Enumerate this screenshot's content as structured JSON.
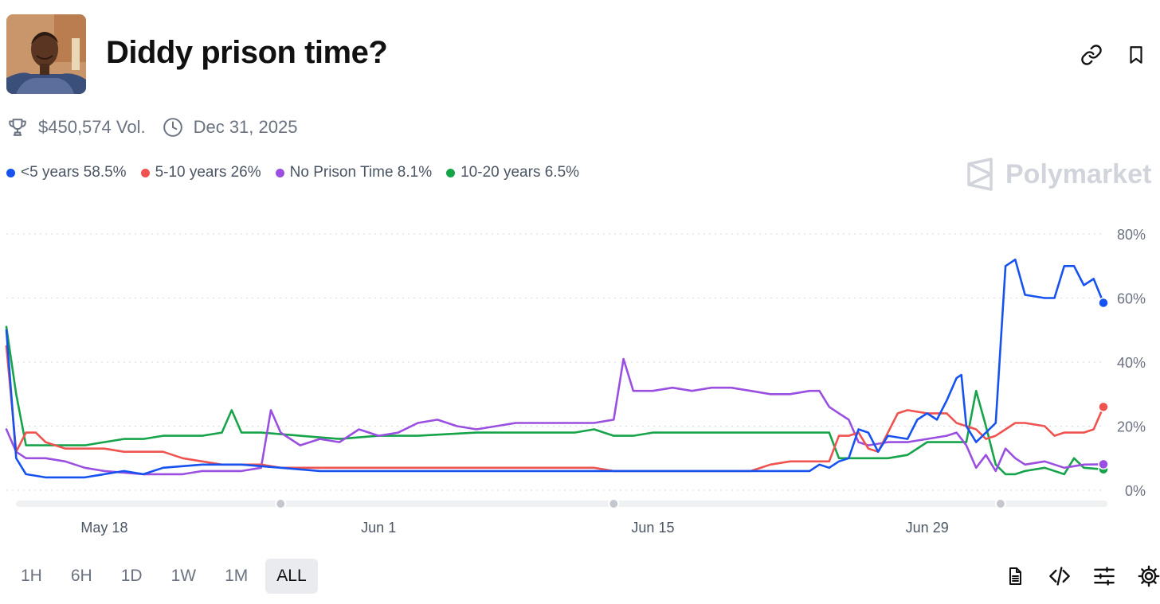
{
  "header": {
    "title": "Diddy prison time?",
    "link_icon": "link-icon",
    "bookmark_icon": "bookmark-icon"
  },
  "meta": {
    "volume": "$450,574 Vol.",
    "end_date": "Dec 31, 2025"
  },
  "brand": "Polymarket",
  "legend": [
    {
      "label": "<5 years 58.5%",
      "color": "#1652f0"
    },
    {
      "label": "5-10 years 26%",
      "color": "#ef5350"
    },
    {
      "label": "No Prison Time 8.1%",
      "color": "#9a4fe0"
    },
    {
      "label": "10-20 years 6.5%",
      "color": "#16a34a"
    }
  ],
  "time_ranges": [
    "1H",
    "6H",
    "1D",
    "1W",
    "1M",
    "ALL"
  ],
  "active_range": "ALL",
  "toolbar_icons": [
    "document-icon",
    "embed-code-icon",
    "sliders-icon",
    "gear-icon"
  ],
  "chart_data": {
    "type": "line",
    "x_axis": {
      "type": "date",
      "ticks": [
        "May 18",
        "Jun 1",
        "Jun 15",
        "Jun 29"
      ],
      "tick_dates": [
        "2025-05-18",
        "2025-06-01",
        "2025-06-15",
        "2025-06-29"
      ],
      "range": [
        "2025-05-13",
        "2025-07-08"
      ]
    },
    "y_axis": {
      "ticks": [
        "0%",
        "20%",
        "40%",
        "60%",
        "80%"
      ],
      "tick_values": [
        0,
        20,
        40,
        60,
        80
      ],
      "ylim": [
        0,
        80
      ],
      "side": "right"
    },
    "grid": "horizontal-dotted",
    "series": [
      {
        "name": "<5 years",
        "color": "#1652f0",
        "points": [
          [
            "2025-05-13",
            50
          ],
          [
            "2025-05-13 12:00",
            10
          ],
          [
            "2025-05-14",
            5
          ],
          [
            "2025-05-15",
            4
          ],
          [
            "2025-05-17",
            4
          ],
          [
            "2025-05-18",
            5
          ],
          [
            "2025-05-19",
            6
          ],
          [
            "2025-05-20",
            5
          ],
          [
            "2025-05-21",
            7
          ],
          [
            "2025-05-23",
            8
          ],
          [
            "2025-05-25",
            8
          ],
          [
            "2025-05-27",
            7
          ],
          [
            "2025-05-29",
            6
          ],
          [
            "2025-06-05",
            6
          ],
          [
            "2025-06-12",
            6
          ],
          [
            "2025-06-17",
            6
          ],
          [
            "2025-06-21",
            6
          ],
          [
            "2025-06-23",
            6
          ],
          [
            "2025-06-23 12:00",
            8
          ],
          [
            "2025-06-24",
            7
          ],
          [
            "2025-06-24 12:00",
            9
          ],
          [
            "2025-06-25",
            10
          ],
          [
            "2025-06-25 12:00",
            19
          ],
          [
            "2025-06-26",
            18
          ],
          [
            "2025-06-26 12:00",
            12
          ],
          [
            "2025-06-27",
            17
          ],
          [
            "2025-06-28",
            16
          ],
          [
            "2025-06-28 12:00",
            22
          ],
          [
            "2025-06-29",
            24
          ],
          [
            "2025-06-29 12:00",
            22
          ],
          [
            "2025-06-30",
            28
          ],
          [
            "2025-06-30 12:00",
            35
          ],
          [
            "2025-06-30 18:00",
            36
          ],
          [
            "2025-07-01",
            20
          ],
          [
            "2025-07-01 12:00",
            15
          ],
          [
            "2025-07-02",
            18
          ],
          [
            "2025-07-02 12:00",
            21
          ],
          [
            "2025-07-03",
            70
          ],
          [
            "2025-07-03 12:00",
            72
          ],
          [
            "2025-07-04",
            61
          ],
          [
            "2025-07-05",
            60
          ],
          [
            "2025-07-05 12:00",
            60
          ],
          [
            "2025-07-06",
            70
          ],
          [
            "2025-07-06 12:00",
            70
          ],
          [
            "2025-07-07",
            64
          ],
          [
            "2025-07-07 12:00",
            66
          ],
          [
            "2025-07-08",
            58.5
          ]
        ]
      },
      {
        "name": "5-10 years",
        "color": "#ef5350",
        "points": [
          [
            "2025-05-13",
            45
          ],
          [
            "2025-05-13 12:00",
            12
          ],
          [
            "2025-05-14",
            18
          ],
          [
            "2025-05-14 12:00",
            18
          ],
          [
            "2025-05-15",
            15
          ],
          [
            "2025-05-16",
            13
          ],
          [
            "2025-05-18",
            13
          ],
          [
            "2025-05-19",
            12
          ],
          [
            "2025-05-21",
            12
          ],
          [
            "2025-05-22",
            10
          ],
          [
            "2025-05-23",
            9
          ],
          [
            "2025-05-24",
            8
          ],
          [
            "2025-05-26",
            8
          ],
          [
            "2025-05-27",
            7
          ],
          [
            "2025-06-03",
            7
          ],
          [
            "2025-06-10",
            7
          ],
          [
            "2025-06-12",
            7
          ],
          [
            "2025-06-13",
            6
          ],
          [
            "2025-06-20",
            6
          ],
          [
            "2025-06-21",
            8
          ],
          [
            "2025-06-22",
            9
          ],
          [
            "2025-06-24",
            9
          ],
          [
            "2025-06-24 12:00",
            17
          ],
          [
            "2025-06-25",
            17
          ],
          [
            "2025-06-25 12:00",
            18
          ],
          [
            "2025-06-26",
            13
          ],
          [
            "2025-06-26 12:00",
            12
          ],
          [
            "2025-06-27",
            18
          ],
          [
            "2025-06-27 12:00",
            24
          ],
          [
            "2025-06-28",
            25
          ],
          [
            "2025-06-29",
            24
          ],
          [
            "2025-06-30",
            24
          ],
          [
            "2025-06-30 12:00",
            21
          ],
          [
            "2025-07-01",
            20
          ],
          [
            "2025-07-01 12:00",
            19
          ],
          [
            "2025-07-02",
            16
          ],
          [
            "2025-07-02 12:00",
            17
          ],
          [
            "2025-07-03",
            19
          ],
          [
            "2025-07-03 12:00",
            21
          ],
          [
            "2025-07-04",
            21
          ],
          [
            "2025-07-05",
            20
          ],
          [
            "2025-07-05 12:00",
            17
          ],
          [
            "2025-07-06",
            18
          ],
          [
            "2025-07-07",
            18
          ],
          [
            "2025-07-07 12:00",
            19
          ],
          [
            "2025-07-08",
            26
          ]
        ]
      },
      {
        "name": "No Prison Time",
        "color": "#9a4fe0",
        "points": [
          [
            "2025-05-13",
            19
          ],
          [
            "2025-05-13 12:00",
            12
          ],
          [
            "2025-05-14",
            10
          ],
          [
            "2025-05-15",
            10
          ],
          [
            "2025-05-16",
            9
          ],
          [
            "2025-05-17",
            7
          ],
          [
            "2025-05-18",
            6
          ],
          [
            "2025-05-20",
            5
          ],
          [
            "2025-05-22",
            5
          ],
          [
            "2025-05-23",
            6
          ],
          [
            "2025-05-25",
            6
          ],
          [
            "2025-05-26",
            7
          ],
          [
            "2025-05-26 12:00",
            25
          ],
          [
            "2025-05-27",
            18
          ],
          [
            "2025-05-28",
            14
          ],
          [
            "2025-05-29",
            16
          ],
          [
            "2025-05-30",
            15
          ],
          [
            "2025-05-31",
            19
          ],
          [
            "2025-06-01",
            17
          ],
          [
            "2025-06-02",
            18
          ],
          [
            "2025-06-03",
            21
          ],
          [
            "2025-06-04",
            22
          ],
          [
            "2025-06-05",
            20
          ],
          [
            "2025-06-06",
            19
          ],
          [
            "2025-06-07",
            20
          ],
          [
            "2025-06-08",
            21
          ],
          [
            "2025-06-10",
            21
          ],
          [
            "2025-06-12",
            21
          ],
          [
            "2025-06-13",
            22
          ],
          [
            "2025-06-13 12:00",
            41
          ],
          [
            "2025-06-14",
            31
          ],
          [
            "2025-06-15",
            31
          ],
          [
            "2025-06-16",
            32
          ],
          [
            "2025-06-17",
            31
          ],
          [
            "2025-06-18",
            32
          ],
          [
            "2025-06-19",
            32
          ],
          [
            "2025-06-20",
            31
          ],
          [
            "2025-06-21",
            30
          ],
          [
            "2025-06-22",
            30
          ],
          [
            "2025-06-23",
            31
          ],
          [
            "2025-06-23 12:00",
            31
          ],
          [
            "2025-06-24",
            26
          ],
          [
            "2025-06-24 12:00",
            24
          ],
          [
            "2025-06-25",
            22
          ],
          [
            "2025-06-25 12:00",
            15
          ],
          [
            "2025-06-26",
            14
          ],
          [
            "2025-06-27",
            15
          ],
          [
            "2025-06-28",
            15
          ],
          [
            "2025-06-29",
            16
          ],
          [
            "2025-06-30",
            17
          ],
          [
            "2025-06-30 12:00",
            18
          ],
          [
            "2025-07-01",
            14
          ],
          [
            "2025-07-01 12:00",
            7
          ],
          [
            "2025-07-02",
            11
          ],
          [
            "2025-07-02 12:00",
            6
          ],
          [
            "2025-07-03",
            13
          ],
          [
            "2025-07-03 12:00",
            10
          ],
          [
            "2025-07-04",
            8
          ],
          [
            "2025-07-05",
            9
          ],
          [
            "2025-07-06",
            7
          ],
          [
            "2025-07-07",
            8
          ],
          [
            "2025-07-08",
            8.1
          ]
        ]
      },
      {
        "name": "10-20 years",
        "color": "#16a34a",
        "points": [
          [
            "2025-05-13",
            51
          ],
          [
            "2025-05-13 12:00",
            30
          ],
          [
            "2025-05-14",
            14
          ],
          [
            "2025-05-15",
            14
          ],
          [
            "2025-05-17",
            14
          ],
          [
            "2025-05-18",
            15
          ],
          [
            "2025-05-19",
            16
          ],
          [
            "2025-05-20",
            16
          ],
          [
            "2025-05-21",
            17
          ],
          [
            "2025-05-23",
            17
          ],
          [
            "2025-05-24",
            18
          ],
          [
            "2025-05-24 12:00",
            25
          ],
          [
            "2025-05-25",
            18
          ],
          [
            "2025-05-26",
            18
          ],
          [
            "2025-05-28",
            17
          ],
          [
            "2025-05-30",
            16
          ],
          [
            "2025-06-01",
            17
          ],
          [
            "2025-06-03",
            17
          ],
          [
            "2025-06-06",
            18
          ],
          [
            "2025-06-11",
            18
          ],
          [
            "2025-06-12",
            19
          ],
          [
            "2025-06-13",
            17
          ],
          [
            "2025-06-14",
            17
          ],
          [
            "2025-06-15",
            18
          ],
          [
            "2025-06-20",
            18
          ],
          [
            "2025-06-22",
            18
          ],
          [
            "2025-06-24",
            18
          ],
          [
            "2025-06-24 12:00",
            10
          ],
          [
            "2025-06-25",
            10
          ],
          [
            "2025-06-26",
            10
          ],
          [
            "2025-06-27",
            10
          ],
          [
            "2025-06-28",
            11
          ],
          [
            "2025-06-29",
            15
          ],
          [
            "2025-06-30",
            15
          ],
          [
            "2025-07-01",
            15
          ],
          [
            "2025-07-01 12:00",
            31
          ],
          [
            "2025-07-02",
            20
          ],
          [
            "2025-07-02 12:00",
            8
          ],
          [
            "2025-07-03",
            5
          ],
          [
            "2025-07-03 12:00",
            5
          ],
          [
            "2025-07-04",
            6
          ],
          [
            "2025-07-05",
            7
          ],
          [
            "2025-07-06",
            5
          ],
          [
            "2025-07-06 12:00",
            10
          ],
          [
            "2025-07-07",
            7
          ],
          [
            "2025-07-08",
            6.5
          ]
        ]
      }
    ]
  }
}
